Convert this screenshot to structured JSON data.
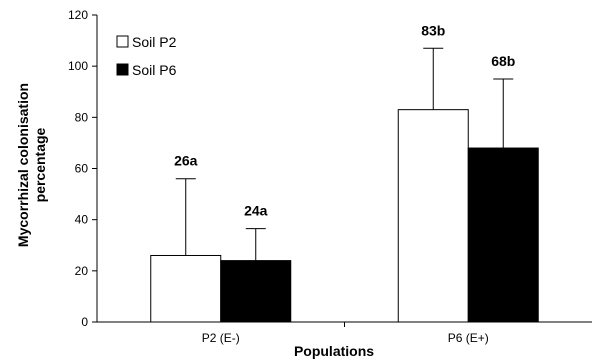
{
  "chart_data": {
    "type": "bar",
    "xlabel": "Populations",
    "ylabel": "Mycorrhizal colonisation percentage",
    "ylabel_lines": [
      "Mycorrhizal colonisation",
      "percentage"
    ],
    "categories": [
      "P2 (E-)",
      "P6 (E+)"
    ],
    "ylim": [
      0,
      120
    ],
    "yticks": [
      0,
      20,
      40,
      60,
      80,
      100,
      120
    ],
    "grid": false,
    "legend_position": "top-left",
    "series": [
      {
        "name": "Soil P2",
        "color": "#ffffff",
        "values": [
          26,
          83
        ],
        "errors": [
          30,
          24
        ],
        "labels": [
          "26a",
          "83b"
        ]
      },
      {
        "name": "Soil P6",
        "color": "#000000",
        "values": [
          24,
          68
        ],
        "errors": [
          12.5,
          27
        ],
        "labels": [
          "24a",
          "68b"
        ]
      }
    ]
  }
}
